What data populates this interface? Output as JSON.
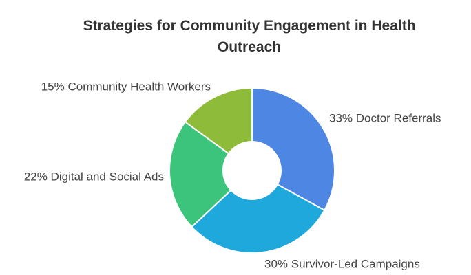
{
  "chart_data": {
    "type": "donut",
    "title": "Strategies for Community Engagement in Health Outreach",
    "values": [
      33,
      30,
      22,
      15
    ],
    "value_labels": [
      "33% Doctor Referrals",
      "30% Survivor-Led Campaigns",
      "22% Digital and Social Ads",
      "15% Community Health Workers"
    ],
    "colors": [
      "#4e86e4",
      "#1fa8dc",
      "#3cc47c",
      "#8fbb3a"
    ]
  }
}
